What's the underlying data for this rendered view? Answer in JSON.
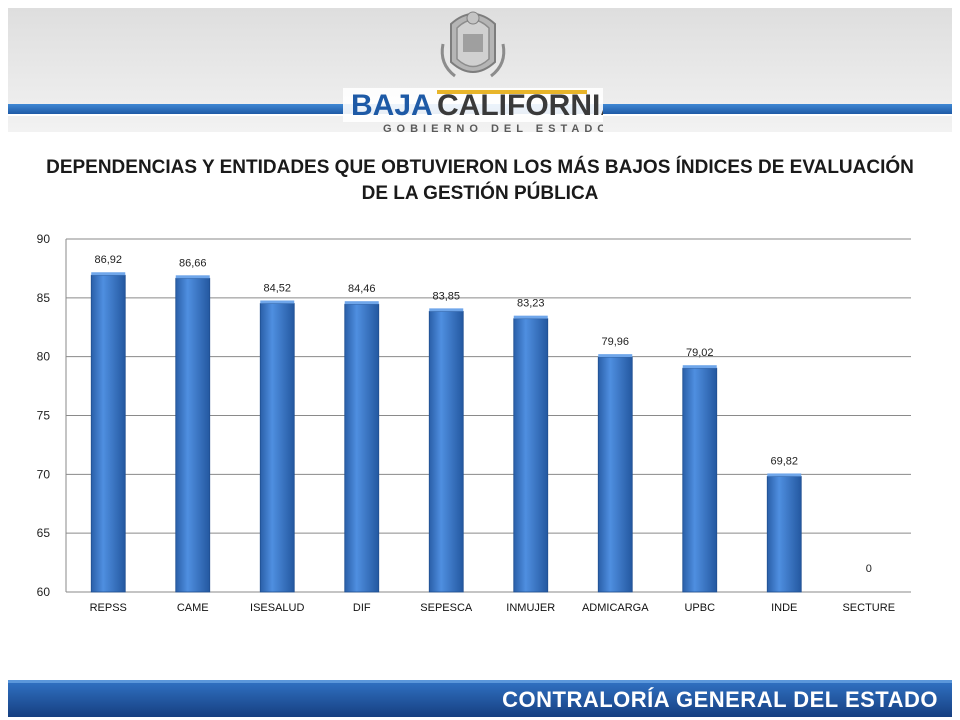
{
  "brand": {
    "name_part1": "BAJA",
    "name_part2": "CALIFORNIA",
    "tagline": "GOBIERNO DEL ESTADO"
  },
  "footer": {
    "text": "CONTRALORÍA GENERAL DEL ESTADO"
  },
  "chart_data": {
    "type": "bar",
    "title": "DEPENDENCIAS Y ENTIDADES QUE OBTUVIERON LOS MÁS BAJOS ÍNDICES DE EVALUACIÓN DE LA GESTIÓN PÚBLICA",
    "title_line1": "DEPENDENCIAS Y ENTIDADES QUE OBTUVIERON LOS MÁS BAJOS ÍNDICES DE EVALUACIÓN",
    "title_line2": "DE LA GESTIÓN PÚBLICA",
    "categories": [
      "REPSS",
      "CAME",
      "ISESALUD",
      "DIF",
      "SEPESCA",
      "INMUJER",
      "ADMICARGA",
      "UPBC",
      "INDE",
      "SECTURE"
    ],
    "values": [
      86.92,
      86.66,
      84.52,
      84.46,
      83.85,
      83.23,
      79.96,
      79.02,
      69.82,
      0
    ],
    "value_labels": [
      "86,92",
      "86,66",
      "84,52",
      "84,46",
      "83,85",
      "83,23",
      "79,96",
      "79,02",
      "69,82",
      "0"
    ],
    "ylim": [
      60,
      90
    ],
    "yticks": [
      60,
      65,
      70,
      75,
      80,
      85,
      90
    ],
    "grid": true,
    "bar_color": "#3a78c9",
    "grid_color": "#8a8a8a"
  }
}
